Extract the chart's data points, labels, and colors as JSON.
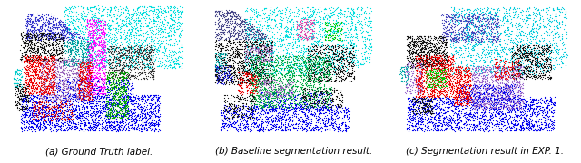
{
  "figsize": [
    6.4,
    1.8
  ],
  "dpi": 100,
  "captions": [
    "(a) Ground Truth label.",
    "(b) Baseline segmentation result.",
    "(c) Segmentation result in EXP. 1."
  ],
  "caption_fontsize": 7.5,
  "background_color": "#ffffff",
  "seed": 42
}
